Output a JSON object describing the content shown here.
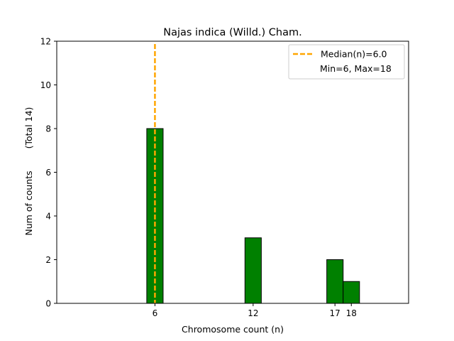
{
  "chart_data": {
    "type": "bar",
    "title": "Najas indica (Willd.) Cham.",
    "xlabel": "Chromosome count (n)",
    "ylabel": "Num of counts",
    "ylabel_note": "(Total 14)",
    "x": [
      6,
      12,
      17,
      18
    ],
    "values": [
      8,
      3,
      2,
      1
    ],
    "xticks": [
      6,
      12,
      17,
      18
    ],
    "yticks": [
      0,
      2,
      4,
      6,
      8,
      10,
      12
    ],
    "xlim": [
      0,
      21.5
    ],
    "ylim": [
      0,
      12
    ],
    "bar_width": 1,
    "bar_color": "#008000",
    "bar_edge_color": "#000000",
    "grid": false,
    "median": {
      "value": 6,
      "color": "#FFA500",
      "label": "Median(n)=6.0"
    },
    "legend": {
      "placement": "top-right",
      "entries": [
        "Median(n)=6.0",
        "Min=6, Max=18"
      ]
    }
  }
}
